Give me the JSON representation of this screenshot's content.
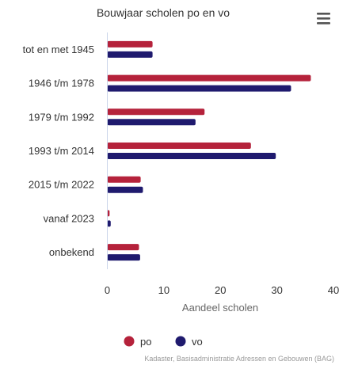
{
  "chart_data": {
    "type": "bar",
    "orientation": "horizontal",
    "title": "Bouwjaar scholen po en vo",
    "xlabel": "Aandeel scholen",
    "ylabel": "",
    "categories": [
      "tot en met 1945",
      "1946 t/m 1978",
      "1979 t/m 1992",
      "1993 t/m 2014",
      "2015 t/m 2022",
      "vanaf 2023",
      "onbekend"
    ],
    "series": [
      {
        "name": "po",
        "color": "#b5223b",
        "values": [
          8,
          36,
          17.2,
          25.4,
          5.9,
          0.4,
          5.6
        ]
      },
      {
        "name": "vo",
        "color": "#1f1a6e",
        "values": [
          8,
          32.5,
          15.6,
          29.8,
          6.3,
          0.6,
          5.8
        ]
      }
    ],
    "xlim": [
      0,
      40
    ],
    "xticks": [
      0,
      10,
      20,
      30,
      40
    ],
    "tick_labels": [
      "0",
      "10",
      "20",
      "30",
      "40"
    ],
    "grid": false,
    "legend_position": "bottom"
  },
  "credits": "Kadaster, Basisadministratie Adressen en Gebouwen (BAG)",
  "menu": {
    "icon": "menu-icon"
  }
}
